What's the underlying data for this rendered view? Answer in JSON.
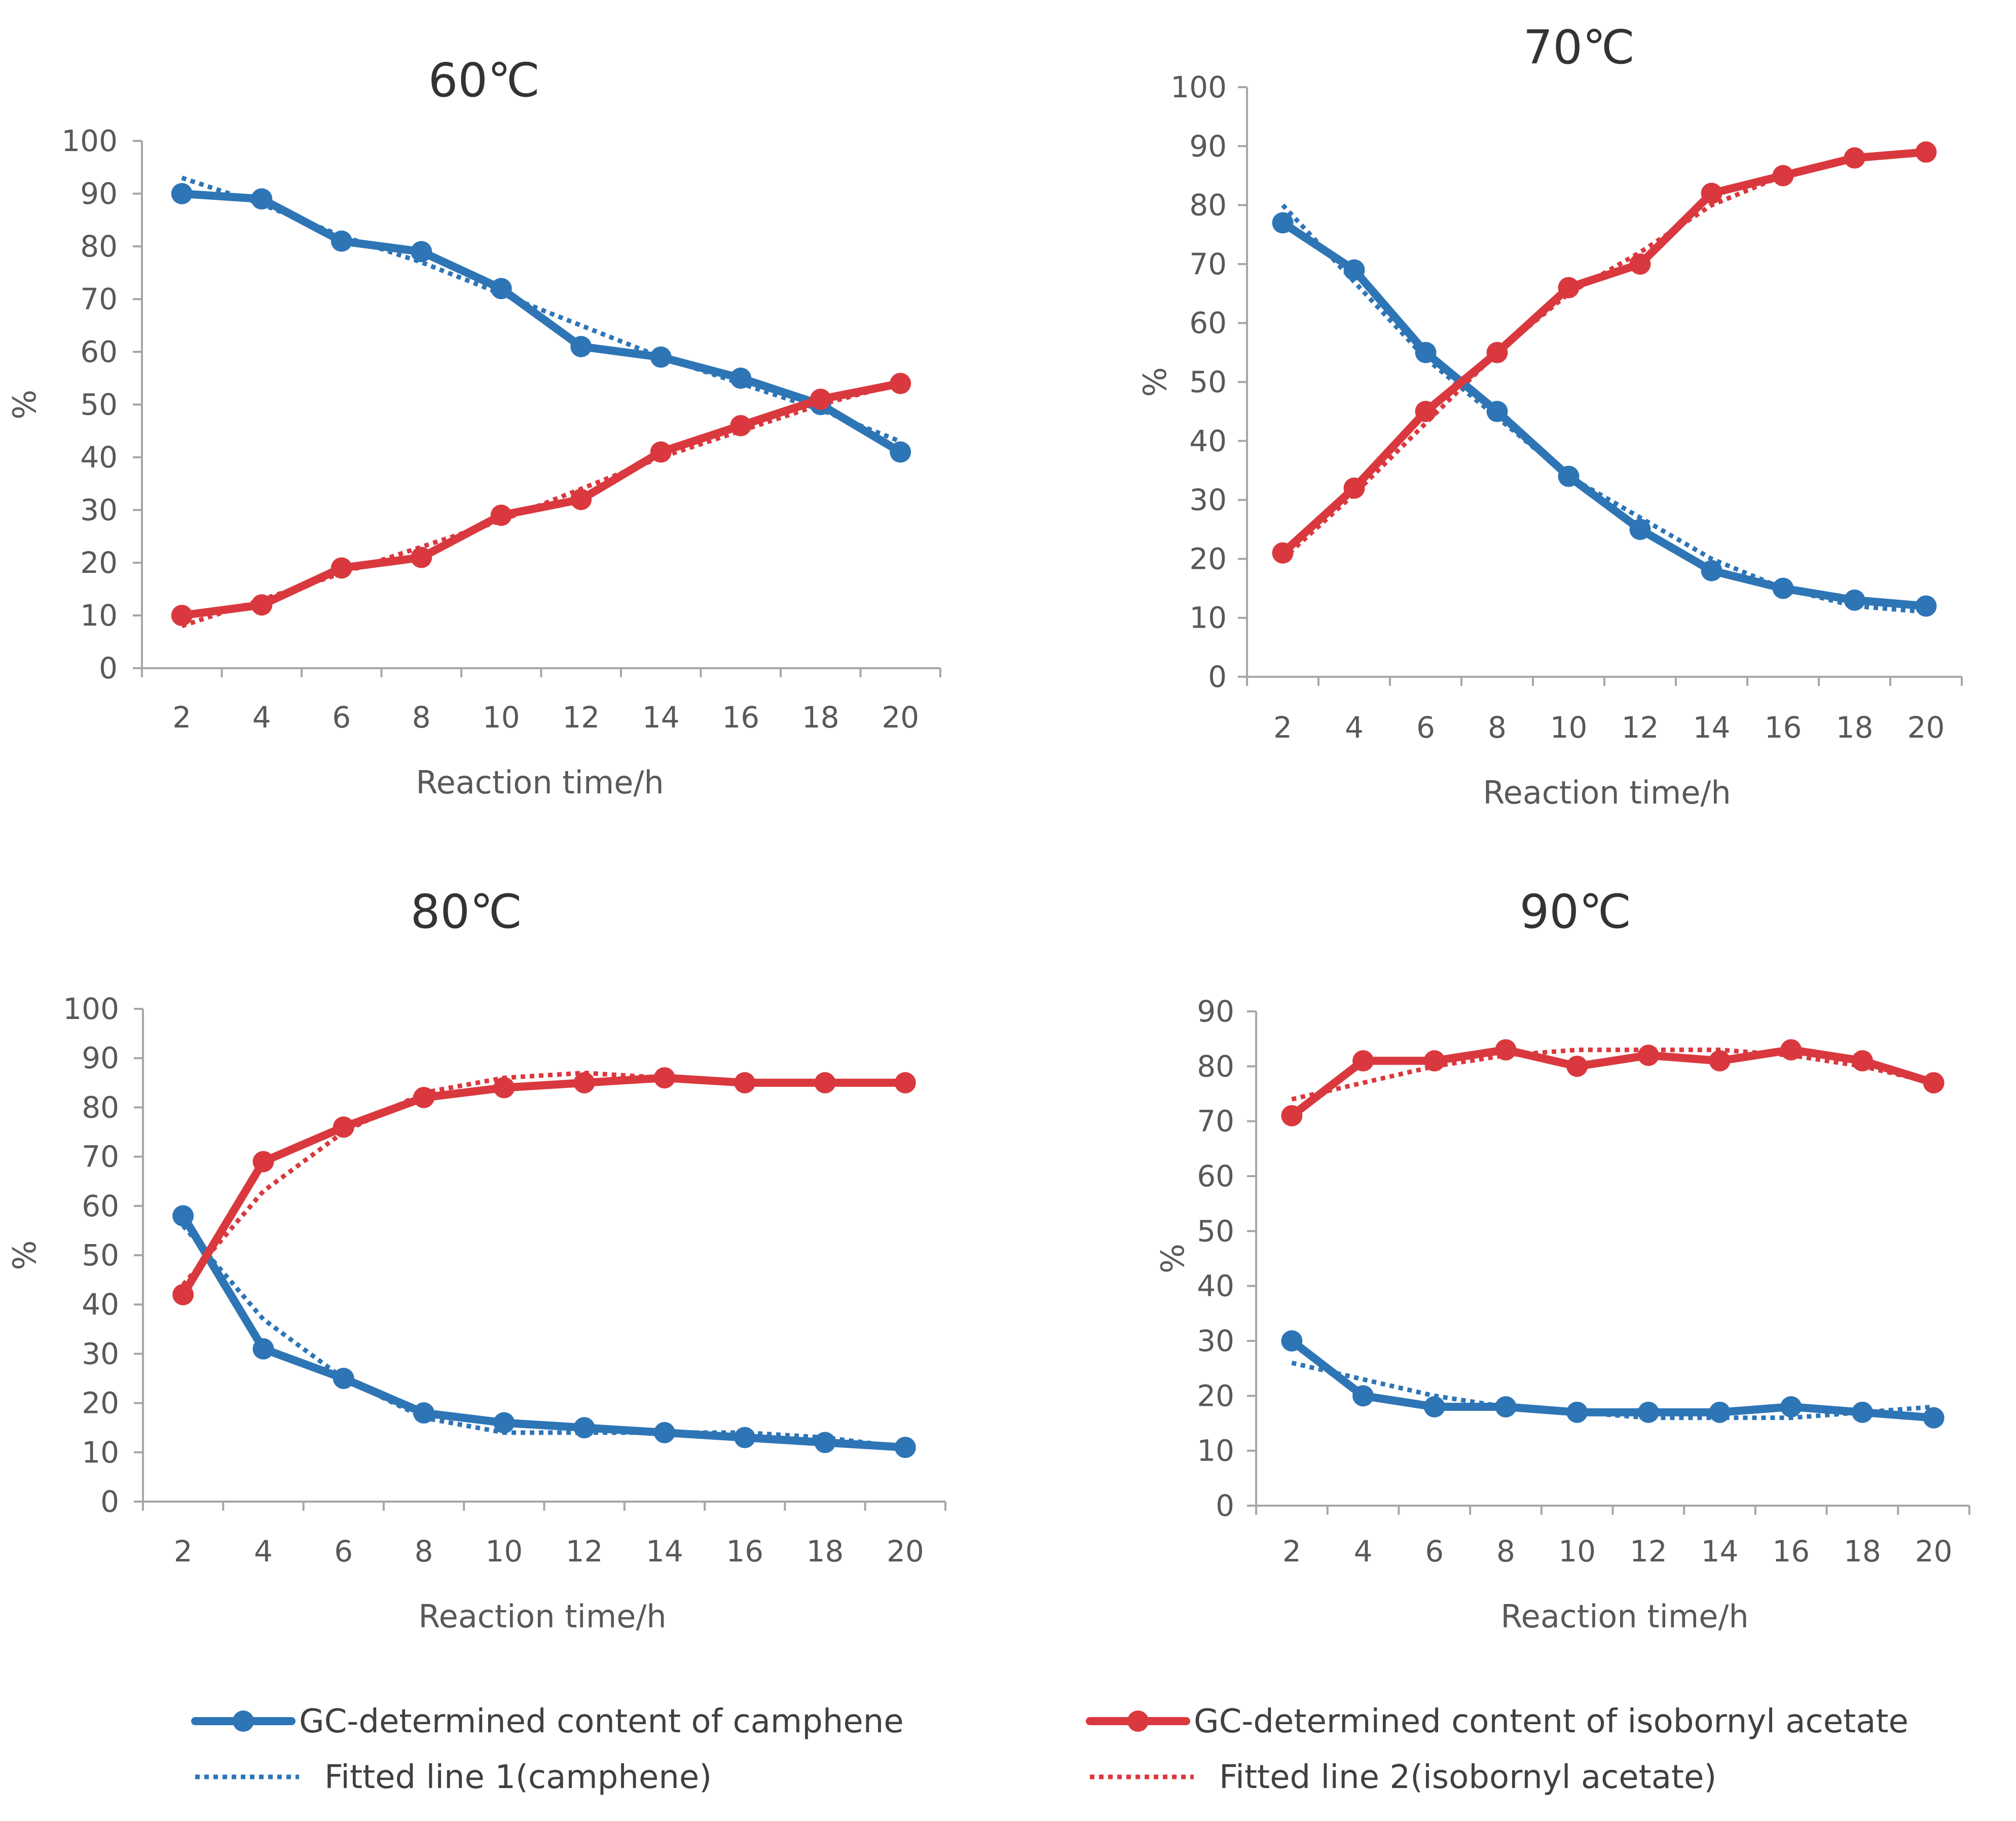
{
  "colors": {
    "camphene": "#2E75B6",
    "isobornyl": "#D9393E",
    "axis": "#A6A6A6",
    "text": "#595959"
  },
  "chart_data": [
    {
      "type": "line",
      "title": "60℃",
      "xlabel": "Reaction time/h",
      "ylabel": "%",
      "x": [
        2,
        4,
        6,
        8,
        10,
        12,
        14,
        16,
        18,
        20
      ],
      "x_ticks": [
        "2",
        "4",
        "6",
        "8",
        "10",
        "12",
        "14",
        "16",
        "18",
        "20"
      ],
      "ylim": [
        0,
        100
      ],
      "y_ticks": [
        "0",
        "10",
        "20",
        "30",
        "40",
        "50",
        "60",
        "70",
        "80",
        "90",
        "100"
      ],
      "grid": false,
      "series": [
        {
          "name": "GC-determined content of camphene",
          "style": "solid-marker",
          "color_key": "camphene",
          "values": [
            90,
            89,
            81,
            79,
            72,
            61,
            59,
            55,
            50,
            41
          ]
        },
        {
          "name": "GC-determined content of isobornyl acetate",
          "style": "solid-marker",
          "color_key": "isobornyl",
          "values": [
            10,
            12,
            19,
            21,
            29,
            32,
            41,
            46,
            51,
            54
          ]
        },
        {
          "name": "Fitted line 1(camphene)",
          "style": "dotted",
          "color_key": "camphene",
          "values": [
            93,
            88,
            82,
            77,
            71,
            65,
            59,
            54,
            49,
            43
          ]
        },
        {
          "name": "Fitted line 2(isobornyl acetate)",
          "style": "dotted",
          "color_key": "isobornyl",
          "values": [
            8,
            13,
            18,
            23,
            28,
            34,
            40,
            45,
            50,
            54
          ]
        }
      ]
    },
    {
      "type": "line",
      "title": "70℃",
      "xlabel": "Reaction time/h",
      "ylabel": "%",
      "x": [
        2,
        4,
        6,
        8,
        10,
        12,
        14,
        16,
        18,
        20
      ],
      "x_ticks": [
        "2",
        "4",
        "6",
        "8",
        "10",
        "12",
        "14",
        "16",
        "18",
        "20"
      ],
      "ylim": [
        0,
        100
      ],
      "y_ticks": [
        "0",
        "10",
        "20",
        "30",
        "40",
        "50",
        "60",
        "70",
        "80",
        "90",
        "100"
      ],
      "grid": false,
      "series": [
        {
          "name": "GC-determined content of camphene",
          "style": "solid-marker",
          "color_key": "camphene",
          "values": [
            77,
            69,
            55,
            45,
            34,
            25,
            18,
            15,
            13,
            12
          ]
        },
        {
          "name": "GC-determined content of isobornyl acetate",
          "style": "solid-marker",
          "color_key": "isobornyl",
          "values": [
            21,
            32,
            45,
            55,
            66,
            70,
            82,
            85,
            88,
            89
          ]
        },
        {
          "name": "Fitted line 1(camphene)",
          "style": "dotted",
          "color_key": "camphene",
          "values": [
            80,
            67,
            54,
            44,
            34,
            27,
            20,
            15,
            12,
            11
          ]
        },
        {
          "name": "Fitted line 2(isobornyl acetate)",
          "style": "dotted",
          "color_key": "isobornyl",
          "values": [
            20,
            31,
            43,
            55,
            65,
            72,
            80,
            85,
            88,
            89
          ]
        }
      ]
    },
    {
      "type": "line",
      "title": "80℃",
      "xlabel": "Reaction time/h",
      "ylabel": "%",
      "x": [
        2,
        4,
        6,
        8,
        10,
        12,
        14,
        16,
        18,
        20
      ],
      "x_ticks": [
        "2",
        "4",
        "6",
        "8",
        "10",
        "12",
        "14",
        "16",
        "18",
        "20"
      ],
      "ylim": [
        0,
        100
      ],
      "y_ticks": [
        "0",
        "10",
        "20",
        "30",
        "40",
        "50",
        "60",
        "70",
        "80",
        "90",
        "100"
      ],
      "grid": false,
      "series": [
        {
          "name": "GC-determined content of camphene",
          "style": "solid-marker",
          "color_key": "camphene",
          "values": [
            58,
            31,
            25,
            18,
            16,
            15,
            14,
            13,
            12,
            11
          ]
        },
        {
          "name": "GC-determined content of isobornyl acetate",
          "style": "solid-marker",
          "color_key": "isobornyl",
          "values": [
            42,
            69,
            76,
            82,
            84,
            85,
            86,
            85,
            85,
            85
          ]
        },
        {
          "name": "Fitted line 1(camphene)",
          "style": "dotted",
          "color_key": "camphene",
          "values": [
            56,
            37,
            25,
            17,
            14,
            14,
            14,
            14,
            13,
            11
          ]
        },
        {
          "name": "Fitted line 2(isobornyl acetate)",
          "style": "dotted",
          "color_key": "isobornyl",
          "values": [
            44,
            63,
            75,
            83,
            86,
            87,
            86,
            85,
            85,
            85
          ]
        }
      ]
    },
    {
      "type": "line",
      "title": "90℃",
      "xlabel": "Reaction time/h",
      "ylabel": "%",
      "x": [
        2,
        4,
        6,
        8,
        10,
        12,
        14,
        16,
        18,
        20
      ],
      "x_ticks": [
        "2",
        "4",
        "6",
        "8",
        "10",
        "12",
        "14",
        "16",
        "18",
        "20"
      ],
      "ylim": [
        0,
        90
      ],
      "y_ticks": [
        "0",
        "10",
        "20",
        "30",
        "40",
        "50",
        "60",
        "70",
        "80",
        "90"
      ],
      "grid": false,
      "series": [
        {
          "name": "GC-determined content of camphene",
          "style": "solid-marker",
          "color_key": "camphene",
          "values": [
            30,
            20,
            18,
            18,
            17,
            17,
            17,
            18,
            17,
            16
          ]
        },
        {
          "name": "GC-determined content of isobornyl acetate",
          "style": "solid-marker",
          "color_key": "isobornyl",
          "values": [
            71,
            81,
            81,
            83,
            80,
            82,
            81,
            83,
            81,
            77
          ]
        },
        {
          "name": "Fitted line 1(camphene)",
          "style": "dotted",
          "color_key": "camphene",
          "values": [
            26,
            23,
            20,
            18,
            17,
            16,
            16,
            16,
            17,
            18
          ]
        },
        {
          "name": "Fitted line 2(isobornyl acetate)",
          "style": "dotted",
          "color_key": "isobornyl",
          "values": [
            74,
            77,
            80,
            82,
            83,
            83,
            83,
            82,
            80,
            77
          ]
        }
      ]
    }
  ],
  "legend": {
    "position": "bottom",
    "items": [
      {
        "label": "GC-determined content of camphene",
        "style": "solid-marker",
        "color_key": "camphene"
      },
      {
        "label": "GC-determined content of isobornyl acetate",
        "style": "solid-marker",
        "color_key": "isobornyl"
      },
      {
        "label": "Fitted line 1(camphene)",
        "style": "dotted",
        "color_key": "camphene"
      },
      {
        "label": "Fitted line 2(isobornyl acetate)",
        "style": "dotted",
        "color_key": "isobornyl"
      }
    ]
  }
}
